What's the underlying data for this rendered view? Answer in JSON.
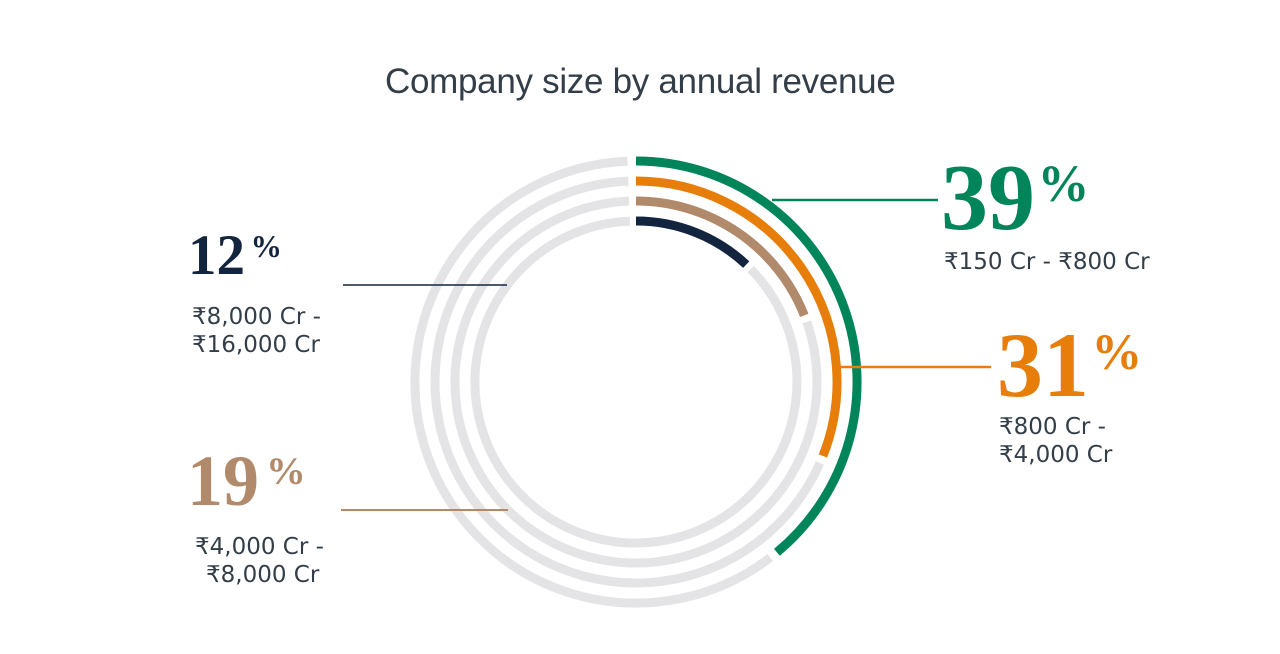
{
  "title": "Company size by annual revenue",
  "colors": {
    "title_text": "#333E48",
    "body_text": "#333E48",
    "green": "#00855A",
    "orange": "#E77E0A",
    "tan": "#B08A6B",
    "navy": "#13243F",
    "ring_track": "#E4E3E6",
    "background": "#FFFFFF"
  },
  "chart_data": {
    "type": "radial_bar",
    "title": "Company size by annual revenue",
    "unit": "percent",
    "direction": "clockwise_from_top",
    "grid": false,
    "legend_position": "callouts-around-chart",
    "track_color": "#E4E3E6",
    "rings_outer_to_inner": [
      39,
      31,
      19,
      12
    ],
    "series": [
      {
        "name": "₹150 Cr - ₹800 Cr",
        "value": 39,
        "color": "#00855A",
        "ring": 1
      },
      {
        "name": "₹800 Cr - ₹4,000 Cr",
        "value": 31,
        "color": "#E77E0A",
        "ring": 2
      },
      {
        "name": "₹4,000 Cr - ₹8,000 Cr",
        "value": 19,
        "color": "#B08A6B",
        "ring": 3
      },
      {
        "name": "₹8,000 Cr - ₹16,000 Cr",
        "value": 12,
        "color": "#13243F",
        "ring": 4
      }
    ]
  },
  "callouts": {
    "c39": {
      "value": "39",
      "unit": "%",
      "range_lines": [
        "₹150 Cr - ₹800 Cr"
      ]
    },
    "c31": {
      "value": "31",
      "unit": "%",
      "range_lines": [
        "₹800 Cr -",
        "₹4,000 Cr"
      ]
    },
    "c19": {
      "value": "19",
      "unit": "%",
      "range_lines": [
        "₹4,000 Cr -",
        "₹8,000 Cr"
      ]
    },
    "c12": {
      "value": "12",
      "unit": "%",
      "range_lines": [
        "₹8,000 Cr -",
        "₹16,000 Cr"
      ]
    }
  }
}
